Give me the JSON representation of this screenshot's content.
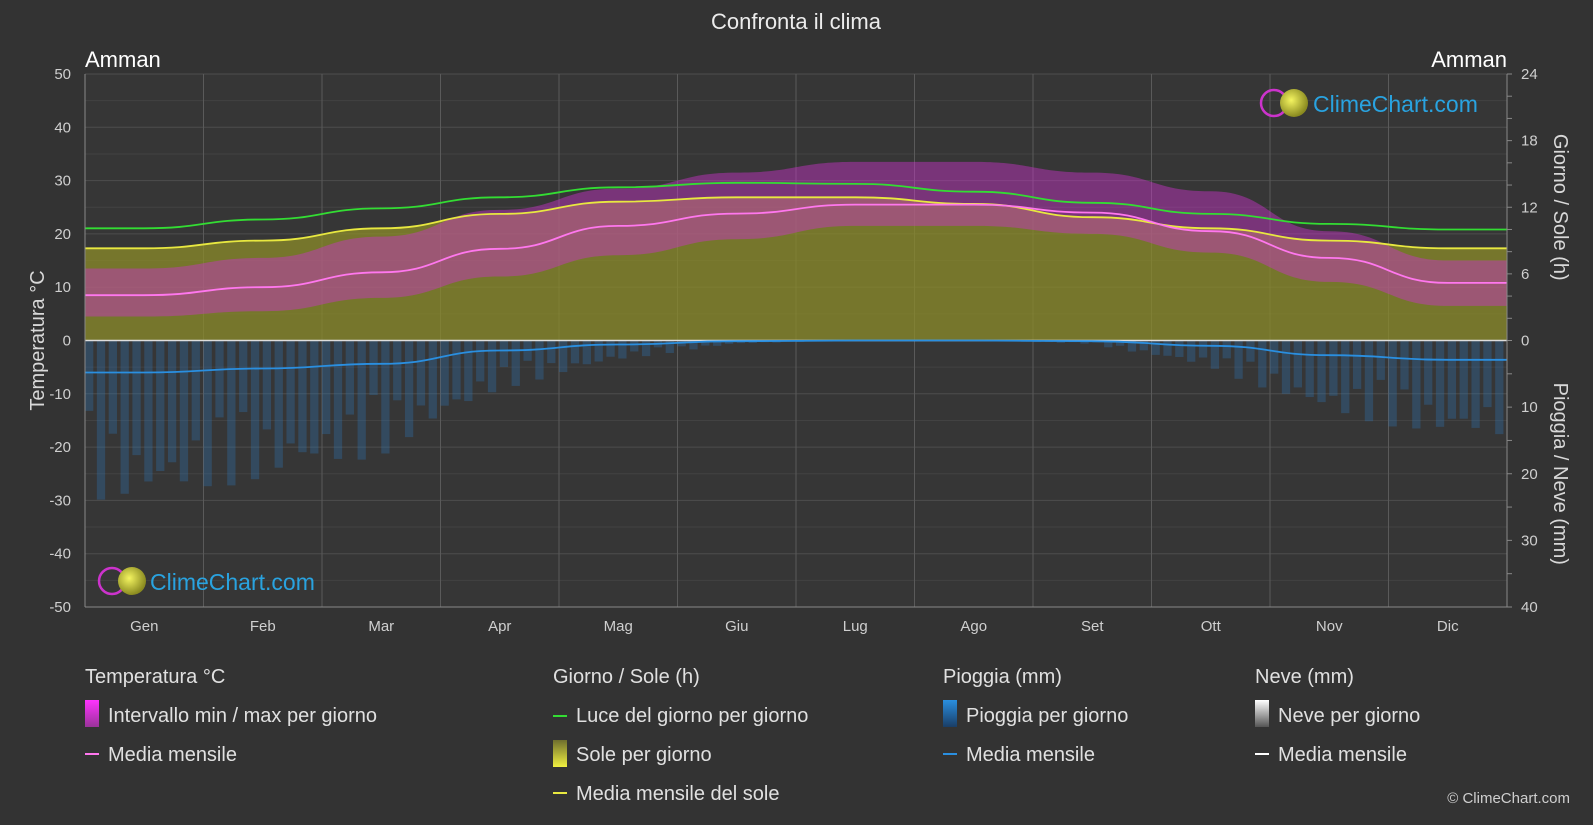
{
  "title": "Confronta il clima",
  "city_left": "Amman",
  "city_right": "Amman",
  "logo_text": "ClimeChart.com",
  "copyright": "© ClimeChart.com",
  "colors": {
    "background": "#333333",
    "daylight": "#33dd33",
    "sun_avg": "#e8e840",
    "sun_fill": "#8c8c2a",
    "temp_range": "#cc33cc",
    "temp_avg": "#ff77ee",
    "rain": "#2a7fc9",
    "rain_avg": "#2a8fe0",
    "snow_avg": "#ffffff",
    "logo": "#29a3e0"
  },
  "chart_data": {
    "type": "area",
    "title": "Confronta il clima",
    "x_categories": [
      "Gen",
      "Feb",
      "Mar",
      "Apr",
      "Mag",
      "Giu",
      "Lug",
      "Ago",
      "Set",
      "Ott",
      "Nov",
      "Dic"
    ],
    "axes": {
      "left": {
        "label": "Temperatura °C",
        "range": [
          -50,
          50
        ],
        "ticks": [
          50,
          40,
          30,
          20,
          10,
          0,
          -10,
          -20,
          -30,
          -40,
          -50
        ]
      },
      "right_top": {
        "label": "Giorno / Sole (h)",
        "range": [
          0,
          24
        ],
        "ticks": [
          24,
          18,
          12,
          6,
          0
        ]
      },
      "right_bottom": {
        "label": "Pioggia / Neve (mm)",
        "range": [
          0,
          40
        ],
        "ticks": [
          0,
          10,
          20,
          30,
          40
        ]
      }
    },
    "grid": true,
    "series": [
      {
        "name": "Luce del giorno per giorno",
        "unit": "h",
        "values": [
          10.1,
          10.9,
          11.9,
          12.9,
          13.8,
          14.2,
          14.1,
          13.4,
          12.4,
          11.4,
          10.5,
          10.0
        ]
      },
      {
        "name": "Media mensile del sole",
        "unit": "h",
        "values": [
          8.3,
          9.0,
          10.1,
          11.4,
          12.5,
          12.9,
          12.9,
          12.3,
          11.1,
          10.1,
          9.0,
          8.3
        ]
      },
      {
        "name": "Media mensile",
        "group": "Temperatura °C",
        "unit": "°C",
        "values": [
          8.5,
          10.0,
          12.8,
          17.2,
          21.5,
          23.8,
          25.5,
          25.5,
          24.0,
          20.5,
          15.5,
          10.8
        ]
      },
      {
        "name": "Media mensile",
        "group": "Pioggia (mm)",
        "unit": "mm",
        "values": [
          4.8,
          4.2,
          3.5,
          1.5,
          0.6,
          0.1,
          0.0,
          0.0,
          0.1,
          0.8,
          2.2,
          2.9
        ]
      },
      {
        "name": "Intervallo min / max per giorno",
        "unit": "°C",
        "min": [
          4.5,
          5.5,
          8.0,
          12.0,
          16.0,
          19.0,
          21.5,
          21.5,
          20.0,
          16.5,
          11.0,
          6.5
        ],
        "max": [
          13.5,
          15.5,
          19.5,
          24.5,
          28.5,
          31.5,
          33.5,
          33.5,
          31.5,
          28.0,
          20.5,
          15.0
        ]
      },
      {
        "name": "Sole per giorno",
        "unit": "h",
        "values": [
          8.3,
          9.0,
          10.1,
          11.4,
          12.5,
          12.9,
          12.9,
          12.3,
          11.1,
          10.1,
          9.0,
          8.3
        ]
      }
    ]
  },
  "legend": {
    "temp": {
      "heading": "Temperatura °C",
      "range_label": "Intervallo min / max per giorno",
      "avg_label": "Media mensile"
    },
    "sun": {
      "heading": "Giorno / Sole (h)",
      "daylight_label": "Luce del giorno per giorno",
      "sun_label": "Sole per giorno",
      "sun_avg_label": "Media mensile del sole"
    },
    "rain": {
      "heading": "Pioggia (mm)",
      "rain_label": "Pioggia per giorno",
      "avg_label": "Media mensile"
    },
    "snow": {
      "heading": "Neve (mm)",
      "snow_label": "Neve per giorno",
      "avg_label": "Media mensile"
    }
  }
}
